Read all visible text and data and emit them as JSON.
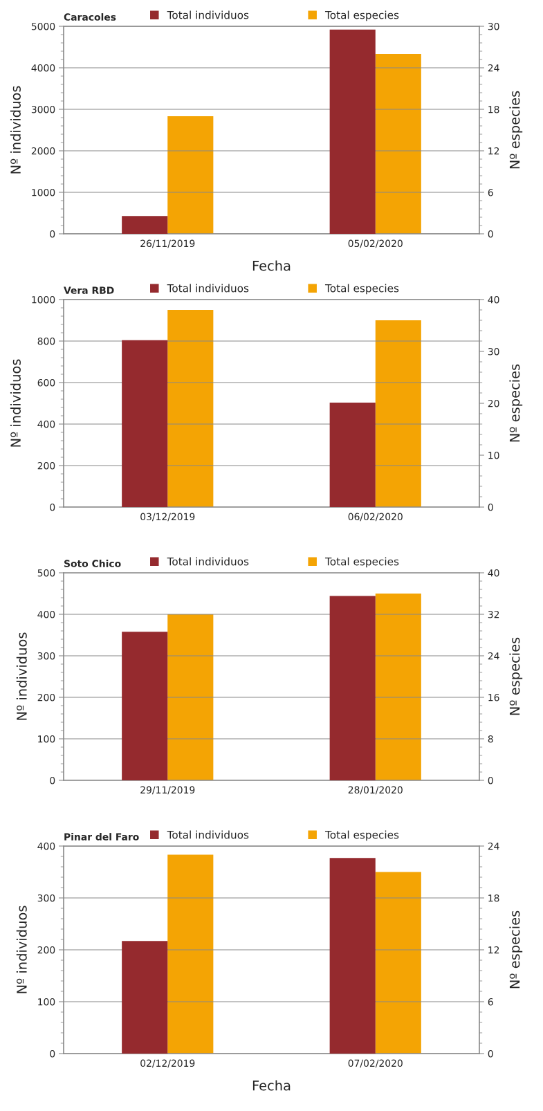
{
  "chart_data": [
    {
      "type": "bar",
      "title": "Caracoles",
      "categories": [
        "26/11/2019",
        "05/02/2020"
      ],
      "xlabel": "Fecha",
      "ylabel": "Nº individuos",
      "y2label": "Nº especies",
      "ylim": [
        0,
        5000
      ],
      "yticks": [
        0,
        1000,
        2000,
        3000,
        4000,
        5000
      ],
      "y2lim": [
        0,
        30
      ],
      "y2ticks": [
        0,
        6,
        12,
        18,
        24,
        30
      ],
      "grid": "y",
      "legend": "top",
      "series": [
        {
          "name": "Total individuos",
          "color": "#952a2e",
          "values": [
            430,
            4920
          ]
        },
        {
          "name": "Total especies",
          "color": "#f4a404",
          "axis": "y2",
          "values": [
            17,
            26
          ]
        }
      ]
    },
    {
      "type": "bar",
      "title": "Vera RBD",
      "categories": [
        "03/12/2019",
        "06/02/2020"
      ],
      "ylabel": "Nº individuos",
      "y2label": "Nº especies",
      "ylim": [
        0,
        1000
      ],
      "yticks": [
        0,
        200,
        400,
        600,
        800,
        1000
      ],
      "y2lim": [
        0,
        40
      ],
      "y2ticks": [
        0,
        10,
        20,
        30,
        40
      ],
      "grid": "y",
      "legend": "top",
      "series": [
        {
          "name": "Total individuos",
          "color": "#952a2e",
          "values": [
            804,
            503
          ]
        },
        {
          "name": "Total especies",
          "color": "#f4a404",
          "axis": "y2",
          "values": [
            38,
            36
          ]
        }
      ]
    },
    {
      "type": "bar",
      "title": "Soto Chico",
      "categories": [
        "29/11/2019",
        "28/01/2020"
      ],
      "ylabel": "Nº individuos",
      "y2label": "Nº especies",
      "ylim": [
        0,
        500
      ],
      "yticks": [
        0,
        100,
        200,
        300,
        400,
        500
      ],
      "y2lim": [
        0,
        40
      ],
      "y2ticks": [
        0,
        8,
        16,
        24,
        32,
        40
      ],
      "grid": "y",
      "legend": "top",
      "series": [
        {
          "name": "Total individuos",
          "color": "#952a2e",
          "values": [
            358,
            444
          ]
        },
        {
          "name": "Total especies",
          "color": "#f4a404",
          "axis": "y2",
          "values": [
            32,
            36
          ]
        }
      ]
    },
    {
      "type": "bar",
      "title": "Pinar del Faro",
      "categories": [
        "02/12/2019",
        "07/02/2020"
      ],
      "xlabel": "Fecha",
      "ylabel": "Nº individuos",
      "y2label": "Nº especies",
      "ylim": [
        0,
        400
      ],
      "yticks": [
        0,
        100,
        200,
        300,
        400
      ],
      "y2lim": [
        0,
        24
      ],
      "y2ticks": [
        0,
        6,
        12,
        18,
        24
      ],
      "grid": "y",
      "legend": "top",
      "series": [
        {
          "name": "Total individuos",
          "color": "#952a2e",
          "values": [
            217,
            377
          ]
        },
        {
          "name": "Total especies",
          "color": "#f4a404",
          "axis": "y2",
          "values": [
            23,
            21
          ]
        }
      ]
    }
  ]
}
